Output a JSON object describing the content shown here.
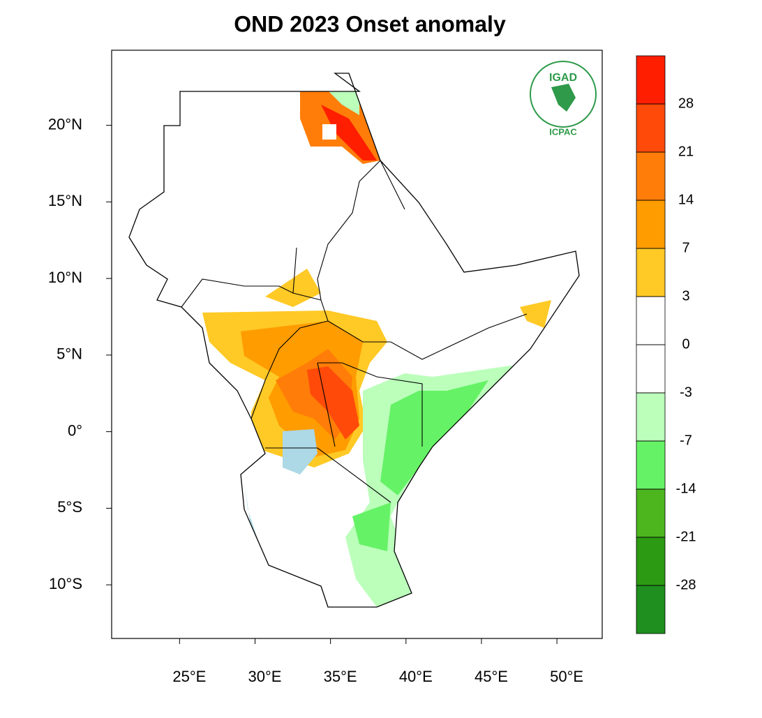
{
  "chart_data": {
    "type": "map",
    "title": "OND 2023 Onset anomaly",
    "xlim": [
      20.5,
      53
    ],
    "ylim": [
      -13.5,
      24.9
    ],
    "xticks": [
      {
        "value": 25,
        "label": "25°E"
      },
      {
        "value": 30,
        "label": "30°E"
      },
      {
        "value": 35,
        "label": "35°E"
      },
      {
        "value": 40,
        "label": "40°E"
      },
      {
        "value": 45,
        "label": "45°E"
      },
      {
        "value": 50,
        "label": "50°E"
      }
    ],
    "yticks": [
      {
        "value": -10,
        "label": "10°S"
      },
      {
        "value": -5,
        "label": "5°S"
      },
      {
        "value": 0,
        "label": "0°"
      },
      {
        "value": 5,
        "label": "5°N"
      },
      {
        "value": 10,
        "label": "10°N"
      },
      {
        "value": 15,
        "label": "15°N"
      },
      {
        "value": 20,
        "label": "20°N"
      }
    ],
    "colorbar": {
      "levels": [
        -28,
        -21,
        -14,
        -7,
        -3,
        0,
        3,
        7,
        14,
        21,
        28
      ],
      "colors": [
        "#1f8f1f",
        "#2c9a12",
        "#4db51d",
        "#66f266",
        "#bbffbb",
        "#ffffff",
        "#ffffff",
        "#ffc926",
        "#ff9c00",
        "#ff7d08",
        "#ff4a0a",
        "#ff1e00"
      ]
    }
  },
  "logo": {
    "top": "IGAD",
    "bottom": "ICPAC"
  }
}
